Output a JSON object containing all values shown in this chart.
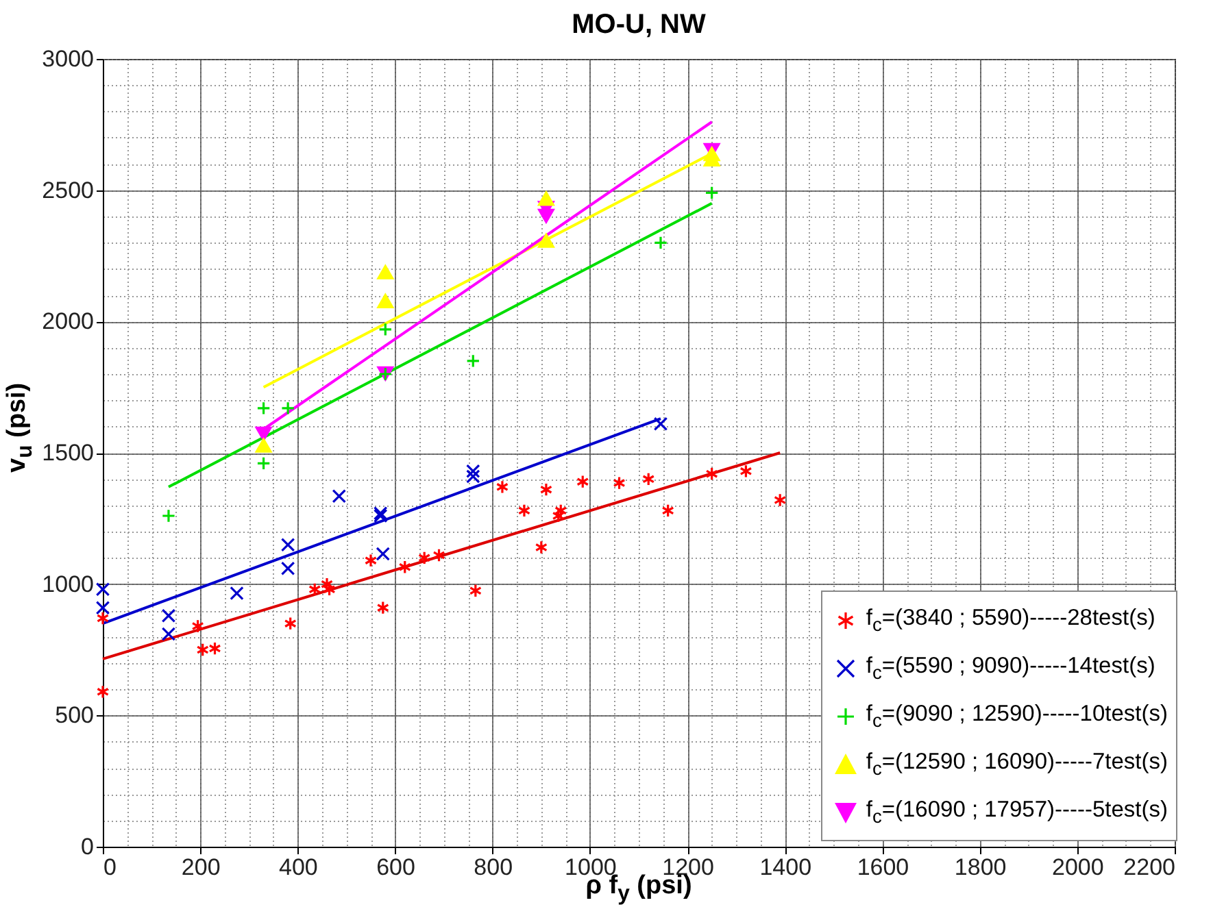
{
  "chart_data": {
    "type": "scatter",
    "title": "MO-U, NW",
    "xlabel": "ρ f$_{y}$ (psi)",
    "ylabel": "v$_{u}$ (psi)",
    "xlim": [
      0,
      2200
    ],
    "xticks": [
      0,
      200,
      400,
      600,
      800,
      1000,
      1200,
      1400,
      1600,
      1800,
      2000,
      2200
    ],
    "ylim": [
      0,
      3000
    ],
    "yticks": [
      0,
      500,
      1000,
      1500,
      2000,
      2500,
      3000
    ],
    "grid": true,
    "legend": "bottom right",
    "series": [
      {
        "name": "f$_{c}$=(3840 ; 5590)-----28test(s)",
        "color": "#ff0000",
        "marker": "cross",
        "x": [
          0,
          0,
          195,
          205,
          230,
          385,
          435,
          460,
          465,
          550,
          575,
          620,
          660,
          690,
          765,
          820,
          865,
          900,
          910,
          935,
          940,
          985,
          1060,
          1120,
          1160,
          1250,
          1320,
          1390
        ],
        "values": [
          590,
          870,
          840,
          750,
          755,
          850,
          980,
          1000,
          980,
          1090,
          910,
          1065,
          1100,
          1110,
          975,
          1370,
          1280,
          1140,
          1360,
          1260,
          1280,
          1390,
          1385,
          1400,
          1280,
          1420,
          1430,
          1320
        ]
      },
      {
        "name": "f$_{c}$=(5590 ; 9090)-----14test(s)",
        "color": "#0000cc",
        "marker": "x",
        "x": [
          0,
          0,
          135,
          135,
          275,
          380,
          380,
          485,
          570,
          570,
          575,
          760,
          760,
          1145
        ],
        "values": [
          980,
          910,
          880,
          810,
          965,
          1150,
          1060,
          1335,
          1270,
          1260,
          1115,
          1430,
          1410,
          1610
        ]
      },
      {
        "name": "f$_{c}$=(9090 ; 12590)-----10test(s)",
        "color": "#00dd00",
        "marker": "plus",
        "x": [
          135,
          330,
          330,
          380,
          580,
          580,
          760,
          1145,
          1250
        ],
        "values": [
          1260,
          1670,
          1460,
          1670,
          1970,
          1800,
          1850,
          2300,
          2490
        ]
      },
      {
        "name": "f$_{c}$=(12590 ; 16090)-----7test(s)",
        "color": "#ffff00",
        "marker": "triangle",
        "x": [
          330,
          580,
          580,
          910,
          910,
          1250,
          1250
        ],
        "values": [
          1530,
          2190,
          2080,
          2470,
          2310,
          2620,
          2640
        ]
      },
      {
        "name": "f$_{c}$=(16090 ; 17957)-----5test(s)",
        "color": "#ff00ff",
        "marker": "triangle-down",
        "x": [
          330,
          580,
          910,
          910,
          1250
        ],
        "values": [
          1570,
          1800,
          2430,
          2400,
          2650
        ]
      },
      {
        "type": "line",
        "color": "#dd0000",
        "x": [
          0,
          1390
        ],
        "values": [
          715,
          1500
        ]
      },
      {
        "type": "line",
        "color": "#0000cc",
        "x": [
          0,
          1145
        ],
        "values": [
          850,
          1630
        ]
      },
      {
        "type": "line",
        "color": "#00dd00",
        "x": [
          135,
          1250
        ],
        "values": [
          1370,
          2450
        ]
      },
      {
        "type": "line",
        "color": "#ffff00",
        "x": [
          330,
          1250
        ],
        "values": [
          1750,
          2640
        ]
      },
      {
        "type": "line",
        "color": "#ff00ff",
        "x": [
          330,
          1250
        ],
        "values": [
          1590,
          2760
        ]
      }
    ]
  }
}
